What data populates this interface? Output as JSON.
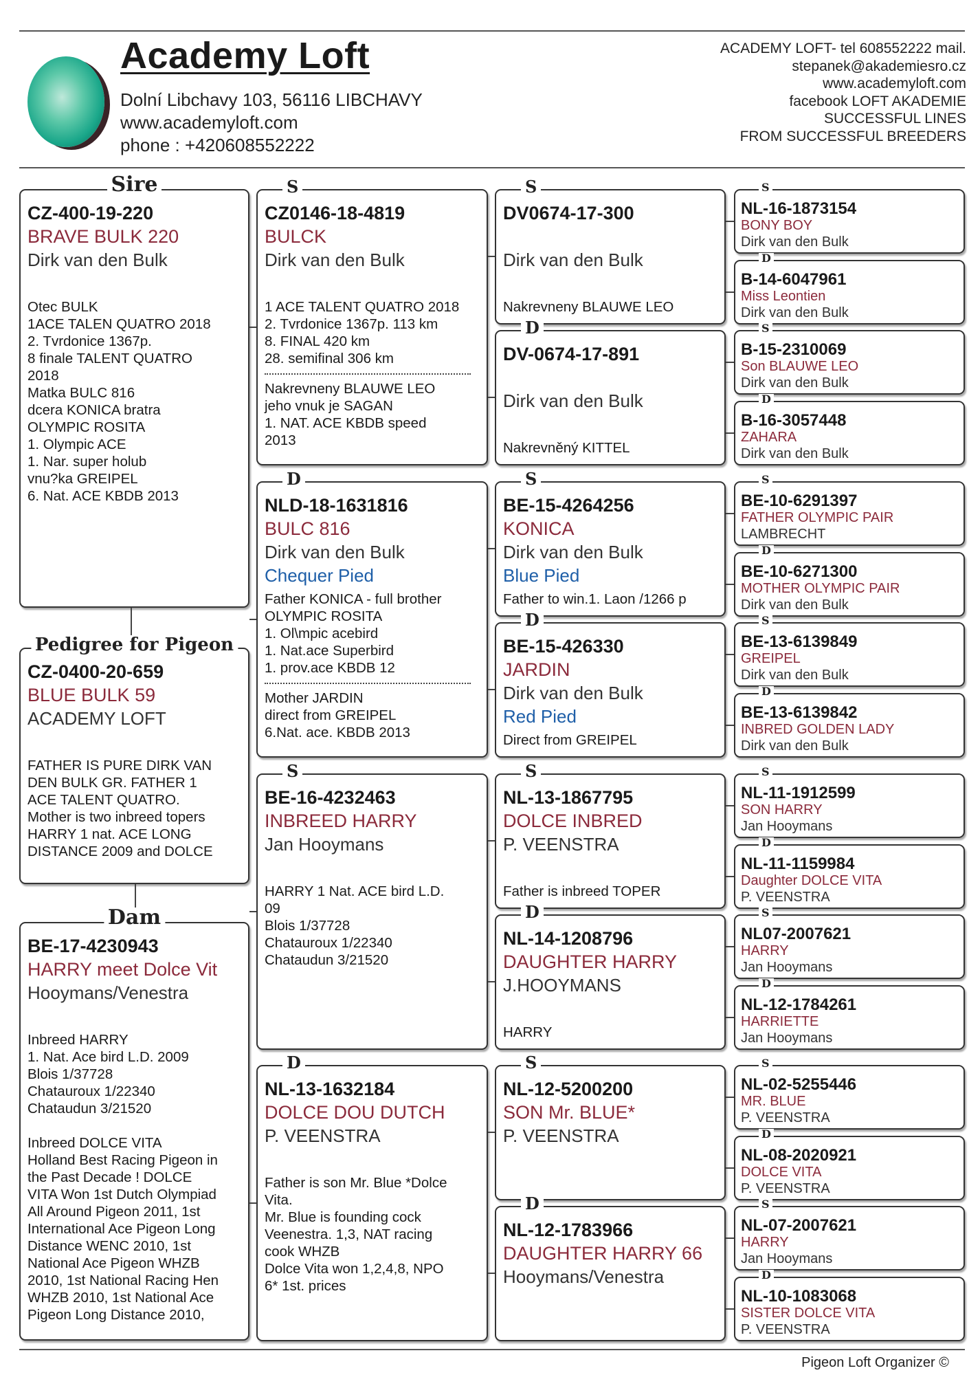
{
  "header": {
    "title": "Academy Loft",
    "address": "Dolní Libchavy 103, 56116 LIBCHAVY",
    "website": "www.academyloft.com",
    "phone": "phone : +420608552222",
    "contact_lines": [
      "ACADEMY LOFT-  tel 608552222 mail.",
      "stepanek@akademiesro.cz",
      "www.academyloft.com",
      "facebook LOFT AKADEMIE",
      "SUCCESSFUL  LINES",
      "FROM SUCCESSFUL BREEDERS"
    ]
  },
  "colors": {
    "name": "#8b2a3b",
    "color_text": "#1f5fa8",
    "logo": "#1aa78a"
  },
  "generation1": [
    {
      "label": "Sire",
      "ring": "CZ-400-19-220",
      "name": "BRAVE BULK 220",
      "breeder": "Dirk van den Bulk",
      "color": "",
      "divider": "none",
      "notes": [
        [
          "Otec  BULK",
          "1ACE TALEN QUATRO 2018",
          "2. Tvrdonice 1367p.",
          "8 finale TALENT QUATRO",
          "2018",
          "Matka   BULC 816",
          "dcera KONICA bratra",
          "OLYMPIC ROSITA",
          "1. Olympic ACE",
          "1. Nar. super holub",
          "vnu?ka GREIPEL",
          "6. Nat. ACE KBDB 2013"
        ]
      ]
    },
    {
      "label": "Pedigree for Pigeon",
      "ring": "CZ-0400-20-659",
      "name": "BLUE BULK 59",
      "breeder": "ACADEMY LOFT",
      "color": "",
      "divider": "none",
      "notes": [
        [
          "FATHER IS PURE DIRK VAN",
          "DEN BULK  GR. FATHER 1",
          "ACE TALENT QUATRO.",
          "Mother is two inbreed topers",
          "HARRY 1 nat. ACE LONG",
          "DISTANCE 2009 and DOLCE"
        ]
      ]
    },
    {
      "label": "Dam",
      "ring": "BE-17-4230943",
      "name": "HARRY meet Dolce Vit",
      "breeder": "Hooymans/Venestra",
      "color": "",
      "divider": "space",
      "notes": [
        [
          "Inbreed HARRY",
          "1. Nat. Ace bird L.D. 2009",
          "Blois 1/37728",
          "Chatauroux 1/22340",
          "Chataudun 3/21520"
        ],
        [
          "Inbreed DOLCE VITA",
          "Holland Best Racing Pigeon in",
          "the Past Decade ! DOLCE",
          "VITA Won 1st Dutch Olympiad",
          "All Around Pigeon 2011, 1st",
          "International Ace Pigeon Long",
          "Distance WENC 2010, 1st",
          "National Ace Pigeon WHZB",
          "2010, 1st National Racing Hen",
          "WHZB 2010, 1st National Ace",
          "Pigeon Long Distance 2010,"
        ]
      ]
    }
  ],
  "generation2": [
    {
      "label": "S",
      "ring": "CZ0146-18-4819",
      "name": "BULCK",
      "breeder": "Dirk van den Bulk",
      "color": "",
      "divider": "dotted",
      "notes": [
        [
          "1 ACE TALENT QUATRO 2018",
          "2. Tvrdonice 1367p. 113 km",
          "8. FINAL 420 km",
          "28. semifinal 306 km"
        ],
        [
          "Nakrevneny BLAUWE LEO",
          "jeho vnuk je SAGAN",
          "1. NAT. ACE KBDB speed",
          "2013"
        ]
      ]
    },
    {
      "label": "D",
      "ring": "NLD-18-1631816",
      "name": "BULC 816",
      "breeder": "Dirk van den Bulk",
      "color": "Chequer Pied",
      "divider": "dotted",
      "notes": [
        [
          "Father KONICA - full brother",
          "OLYMPIC ROSITA",
          "1. Ol\\mpic acebird",
          "1. Nat.ace Superbird",
          "1. prov.ace KBDB 12"
        ],
        [
          "Mother JARDIN",
          "direct from GREIPEL",
          "6.Nat. ace. KBDB 2013"
        ]
      ]
    },
    {
      "label": "S",
      "ring": "BE-16-4232463",
      "name": "INBREED HARRY",
      "breeder": "Jan Hooymans",
      "color": "",
      "divider": "none",
      "notes": [
        [
          "HARRY 1 Nat. ACE bird L.D.",
          "09",
          "Blois 1/37728",
          "Chatauroux 1/22340",
          "Chataudun 3/21520"
        ]
      ]
    },
    {
      "label": "D",
      "ring": "NL-13-1632184",
      "name": "DOLCE DOU DUTCH",
      "breeder": "P. VEENSTRA",
      "color": "",
      "divider": "none",
      "notes": [
        [
          "Father is son Mr. Blue *Dolce",
          "Vita.",
          "Mr. Blue is founding cock",
          "Veenestra. 1,3, NAT racing",
          "cook WHZB",
          "Dolce Vita  won  1,2,4,8, NPO",
          "6* 1st. prices"
        ]
      ]
    }
  ],
  "generation3": [
    {
      "label": "S",
      "ring": "DV0674-17-300",
      "name": "",
      "breeder": "Dirk van den Bulk",
      "color": "",
      "divider": "none",
      "notes": [
        [
          "Nakrevneny BLAUWE LEO"
        ]
      ]
    },
    {
      "label": "D",
      "ring": "DV-0674-17-891",
      "name": "",
      "breeder": "Dirk van den Bulk",
      "color": "",
      "divider": "none",
      "notes": [
        [
          "Nakrevněný KITTEL"
        ]
      ]
    },
    {
      "label": "S",
      "ring": "BE-15-4264256",
      "name": "KONICA",
      "breeder": "Dirk van den Bulk",
      "color": "Blue Pied",
      "divider": "none",
      "notes": [
        [
          "Father to win.1. Laon /1266 p"
        ]
      ]
    },
    {
      "label": "D",
      "ring": "BE-15-426330",
      "name": "JARDIN",
      "breeder": "Dirk van den Bulk",
      "color": "Red Pied",
      "divider": "none",
      "notes": [
        [
          "Direct from GREIPEL"
        ]
      ]
    },
    {
      "label": "S",
      "ring": "NL-13-1867795",
      "name": "DOLCE INBRED",
      "breeder": "P. VEENSTRA",
      "color": "",
      "divider": "none",
      "notes": [
        [
          "Father is inbreed TOPER"
        ]
      ]
    },
    {
      "label": "D",
      "ring": "NL-14-1208796",
      "name": "DAUGHTER HARRY",
      "breeder": "J.HOOYMANS",
      "color": "",
      "divider": "none",
      "notes": [
        [
          "HARRY"
        ]
      ]
    },
    {
      "label": "S",
      "ring": "NL-12-5200200",
      "name": "SON Mr. BLUE*",
      "breeder": "P. VEENSTRA",
      "color": "",
      "divider": "none",
      "notes": []
    },
    {
      "label": "D",
      "ring": "NL-12-1783966",
      "name": "DAUGHTER HARRY 66",
      "breeder": "Hooymans/Venestra",
      "color": "",
      "divider": "none",
      "notes": []
    }
  ],
  "generation4": [
    {
      "label": "S",
      "ring": "NL-16-1873154",
      "name": "BONY BOY",
      "breeder": "Dirk van den Bulk"
    },
    {
      "label": "D",
      "ring": "B-14-6047961",
      "name": "Miss Leontien",
      "breeder": "Dirk van den Bulk"
    },
    {
      "label": "S",
      "ring": "B-15-2310069",
      "name": "Son BLAUWE LEO",
      "breeder": "Dirk van den Bulk"
    },
    {
      "label": "D",
      "ring": "B-16-3057448",
      "name": "ZAHARA",
      "breeder": "Dirk van den Bulk"
    },
    {
      "label": "S",
      "ring": "BE-10-6291397",
      "name": "FATHER OLYMPIC PAIR",
      "breeder": "LAMBRECHT"
    },
    {
      "label": "D",
      "ring": "BE-10-6271300",
      "name": "MOTHER OLYMPIC PAIR",
      "breeder": "Dirk van den Bulk"
    },
    {
      "label": "S",
      "ring": "BE-13-6139849",
      "name": "GREIPEL",
      "breeder": "Dirk van den Bulk"
    },
    {
      "label": "D",
      "ring": "BE-13-6139842",
      "name": "INBRED GOLDEN LADY",
      "breeder": "Dirk van den Bulk"
    },
    {
      "label": "S",
      "ring": "NL-11-1912599",
      "name": "SON HARRY",
      "breeder": "Jan Hooymans"
    },
    {
      "label": "D",
      "ring": "NL-11-1159984",
      "name": "Daughter DOLCE VITA",
      "breeder": "P. VEENSTRA"
    },
    {
      "label": "S",
      "ring": "NL07-2007621",
      "name": "HARRY",
      "breeder": "Jan Hooymans"
    },
    {
      "label": "D",
      "ring": "NL-12-1784261",
      "name": "HARRIETTE",
      "breeder": "Jan Hooymans"
    },
    {
      "label": "S",
      "ring": "NL-02-5255446",
      "name": "MR. BLUE",
      "breeder": "P. VEENSTRA"
    },
    {
      "label": "D",
      "ring": "NL-08-2020921",
      "name": "DOLCE VITA",
      "breeder": "P. VEENSTRA"
    },
    {
      "label": "S",
      "ring": "NL-07-2007621",
      "name": "HARRY",
      "breeder": "Jan Hooymans"
    },
    {
      "label": "D",
      "ring": "NL-10-1083068",
      "name": "SISTER DOLCE VITA",
      "breeder": "P. VEENSTRA"
    }
  ],
  "footer": "Pigeon Loft Organizer ©"
}
